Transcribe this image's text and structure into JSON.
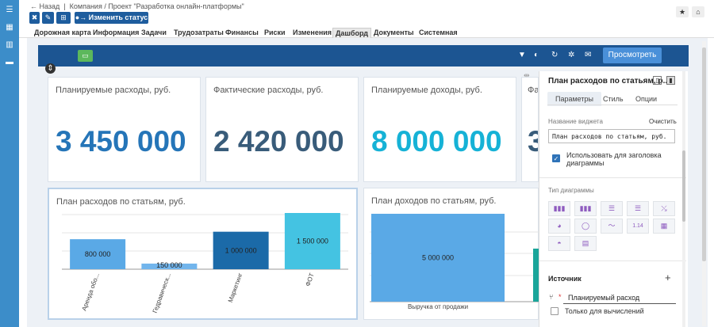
{
  "sidebar": {
    "icons": [
      "menu-icon",
      "grid-icon",
      "book-icon",
      "folder-icon"
    ]
  },
  "breadcrumb": {
    "back": "← Назад",
    "path": "Компания / Проект \"Разработка онлайн-платформы\""
  },
  "toolbar": {
    "status_label": "Изменить статус"
  },
  "tabs": [
    "Дорожная карта",
    "Информация",
    "Задачи",
    "Трудозатраты",
    "Финансы",
    "Риски",
    "Изменения",
    "Дашборд",
    "Документы",
    "Системная"
  ],
  "dashbar": {
    "view_label": "Просмотреть"
  },
  "kpis": [
    {
      "title": "Планируемые расходы, руб.",
      "value": "3 450 000",
      "color": "#2575b8"
    },
    {
      "title": "Фактические расходы, руб.",
      "value": "2 420 000",
      "color": "#395c7a"
    },
    {
      "title": "Планируемые доходы, руб.",
      "value": "8 000 000",
      "color": "#16b2d6"
    },
    {
      "title": "Фа",
      "value": "3",
      "color": "#395c7a"
    }
  ],
  "chart_data": [
    {
      "type": "bar",
      "title": "План расходов по статьям, руб.",
      "categories": [
        "Аренда обо...",
        "Гедравическ...",
        "Маркетинг",
        "ФОТ"
      ],
      "values": [
        800000,
        150000,
        1000000,
        1500000
      ],
      "value_labels": [
        "800 000",
        "150 000",
        "1 000 000",
        "1 500 000"
      ],
      "colors": [
        "#5aa9e6",
        "#72b5ec",
        "#1b6aa8",
        "#44c3e2"
      ],
      "ylim": [
        0,
        1500000
      ]
    },
    {
      "type": "bar",
      "title": "План доходов по статьям, руб.",
      "categories": [
        "Выручка от продажи"
      ],
      "values": [
        5000000
      ],
      "value_labels": [
        "5 000 000"
      ],
      "colors": [
        "#5aa9e6"
      ],
      "ylim": [
        0,
        5000000
      ]
    }
  ],
  "panel": {
    "title": "План расходов по статьям, р...",
    "tabs": [
      "Параметры",
      "Стиль",
      "Опции"
    ],
    "widget_name_label": "Название виджета",
    "clear_label": "Очистить",
    "widget_name_value": "План расходов по статьям, руб.",
    "use_title_label": "Использовать для заголовка диаграммы",
    "chart_type_label": "Тип диаграммы",
    "chart_types": [
      "bar-chart-icon",
      "grouped-bar-icon",
      "hbar-icon",
      "hbar-stacked-icon",
      "line-icon",
      "pie-icon",
      "donut-icon",
      "area-icon",
      "number-icon",
      "table-icon",
      "gauge-icon",
      "pivot-icon"
    ],
    "chart_type_glyphs": [
      "▮▮▮",
      "▮▮▮",
      "☰",
      "☰",
      "⤯",
      "◕",
      "◯",
      "〜",
      "1.14",
      "▦",
      "◓",
      "▤"
    ],
    "source_label": "Источник",
    "source_value": "Планируемый расход",
    "calc_only_label": "Только для вычислений"
  }
}
